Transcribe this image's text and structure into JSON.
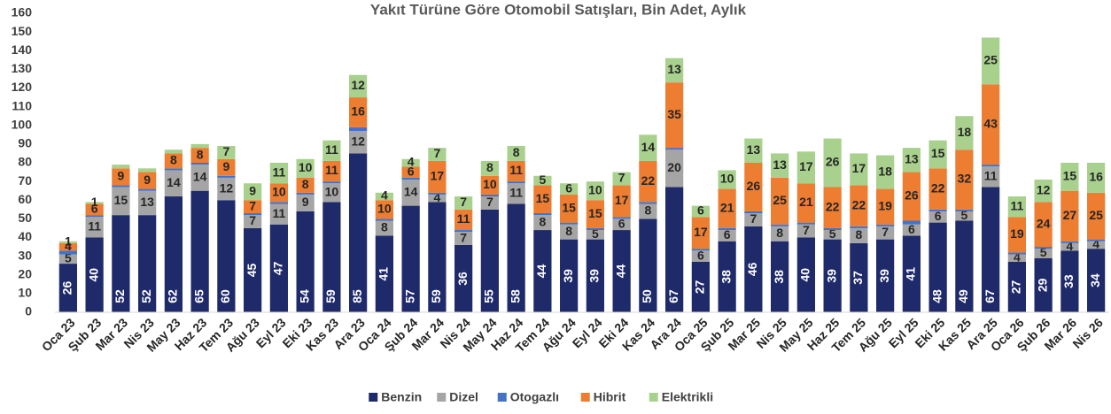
{
  "chart_data": {
    "type": "stacked_bar",
    "title": "Yakıt Türüne Göre Otomobil Satışları, Bin Adet, Aylık",
    "categories": [
      "Oca 23",
      "Şub 23",
      "Mar 23",
      "Nis 23",
      "May 23",
      "Haz 23",
      "Tem 23",
      "Ağu 23",
      "Eyl 23",
      "Eki 23",
      "Kas 23",
      "Ara 23",
      "Oca 24",
      "Şub 24",
      "Mar 24",
      "Nis 24",
      "May 24",
      "Haz 24",
      "Tem 24",
      "Ağu 24",
      "Eyl 24",
      "Eki 24",
      "Kas 24",
      "Ara 24",
      "Oca 25",
      "Şub 25",
      "Mar 25",
      "Nis 25",
      "May 25",
      "Haz 25",
      "Tem 25",
      "Ağu 25",
      "Eyl 25",
      "Eki 25",
      "Kas 25",
      "Ara 25",
      "Oca 26",
      "Şub 26",
      "Mar 26",
      "Nis 26"
    ],
    "series": [
      {
        "name": "Benzin",
        "color": "#1f2a6b",
        "values": [
          26,
          40,
          52,
          52,
          62,
          65,
          60,
          45,
          47,
          54,
          59,
          85,
          41,
          57,
          59,
          36,
          55,
          58,
          44,
          39,
          39,
          44,
          50,
          67,
          27,
          38,
          46,
          38,
          40,
          39,
          37,
          39,
          41,
          48,
          49,
          67,
          27,
          29,
          33,
          34
        ]
      },
      {
        "name": "Dizel",
        "color": "#a5a5a5",
        "values": [
          5,
          11,
          15,
          13,
          14,
          14,
          12,
          7,
          11,
          9,
          10,
          12,
          8,
          14,
          4,
          7,
          7,
          11,
          8,
          8,
          5,
          6,
          8,
          20,
          6,
          6,
          7,
          8,
          7,
          5,
          8,
          7,
          6,
          6,
          5,
          11,
          4,
          5,
          4,
          4
        ]
      },
      {
        "name": "Otogazlı",
        "color": "#4472c4",
        "values": [
          2,
          1,
          1,
          1,
          1,
          1,
          1,
          1,
          1,
          1,
          1,
          2,
          1,
          1,
          1,
          1,
          1,
          1,
          1,
          1,
          1,
          1,
          1,
          1,
          1,
          1,
          1,
          1,
          1,
          1,
          1,
          1,
          2,
          1,
          1,
          1,
          1,
          1,
          1,
          1
        ]
      },
      {
        "name": "Hibrit",
        "color": "#ed7d31",
        "values": [
          4,
          6,
          9,
          9,
          8,
          8,
          9,
          7,
          10,
          8,
          11,
          16,
          10,
          6,
          17,
          11,
          10,
          11,
          15,
          15,
          15,
          17,
          22,
          35,
          17,
          21,
          26,
          25,
          21,
          22,
          22,
          19,
          26,
          22,
          32,
          43,
          19,
          24,
          27,
          25
        ]
      },
      {
        "name": "Elektrikli",
        "color": "#a9d18e",
        "values": [
          1,
          1,
          2,
          2,
          2,
          2,
          7,
          9,
          11,
          10,
          11,
          12,
          4,
          4,
          7,
          7,
          8,
          8,
          5,
          6,
          10,
          7,
          14,
          13,
          6,
          10,
          13,
          13,
          17,
          26,
          17,
          18,
          13,
          15,
          18,
          25,
          11,
          12,
          15,
          16
        ]
      }
    ],
    "ylim": [
      0,
      160
    ],
    "yticks": [
      0,
      10,
      20,
      30,
      40,
      50,
      60,
      70,
      80,
      90,
      100,
      110,
      120,
      130,
      140,
      150,
      160
    ],
    "legend": "bottom"
  }
}
